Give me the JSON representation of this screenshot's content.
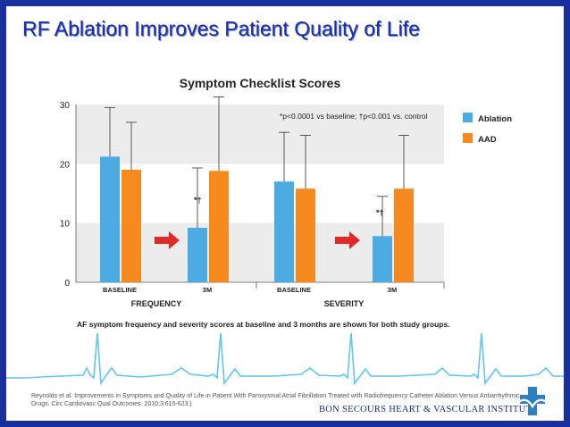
{
  "slide": {
    "title": "RF Ablation Improves Patient Quality of Life",
    "citation": "Reynolds et al. Improvements in Symptoms and Quality of Life in Patient With Paroxysmal Atrial Fibrillation Treated with Radiofrequency Catheter Ablation Versus Antiarrhythmic Drugs. Circ Cardiovasc Qual Outcomes. 2010;3:615-623.)",
    "institute": "BON SECOURS HEART & VASCULAR INSTITUTE"
  },
  "colors": {
    "ablation": "#4dabe4",
    "aad": "#f68a1f",
    "arrow": "#e02a2a",
    "band": "#ececec",
    "ecg": "#66c3ec",
    "frame": "#1a2f9e"
  },
  "chart_data": {
    "type": "bar",
    "title": "Symptom Checklist Scores",
    "ylim": [
      0,
      30
    ],
    "yticks": [
      "0",
      "10",
      "20",
      "30"
    ],
    "groups": [
      {
        "label": "FREQUENCY",
        "categories": [
          "BASELINE",
          "3M"
        ]
      },
      {
        "label": "SEVERITY",
        "categories": [
          "BASELINE",
          "3M"
        ]
      }
    ],
    "series": [
      {
        "name": "Ablation",
        "values": [
          21.2,
          9.2,
          17.0,
          7.8
        ],
        "err_upper": [
          29.5,
          19.3,
          25.3,
          14.5
        ]
      },
      {
        "name": "AAD",
        "values": [
          19.0,
          18.8,
          15.8,
          15.8
        ],
        "err_upper": [
          27.0,
          31.3,
          24.8,
          24.8
        ]
      }
    ],
    "annotations": {
      "footnote": "*p<0.0001 vs baseline; †p<0.001 vs. control",
      "significance": [
        "*†",
        "*†"
      ],
      "caption": "AF symptom frequency and severity scores at baseline and 3 months are shown for both study groups."
    },
    "legend_position": "right"
  }
}
